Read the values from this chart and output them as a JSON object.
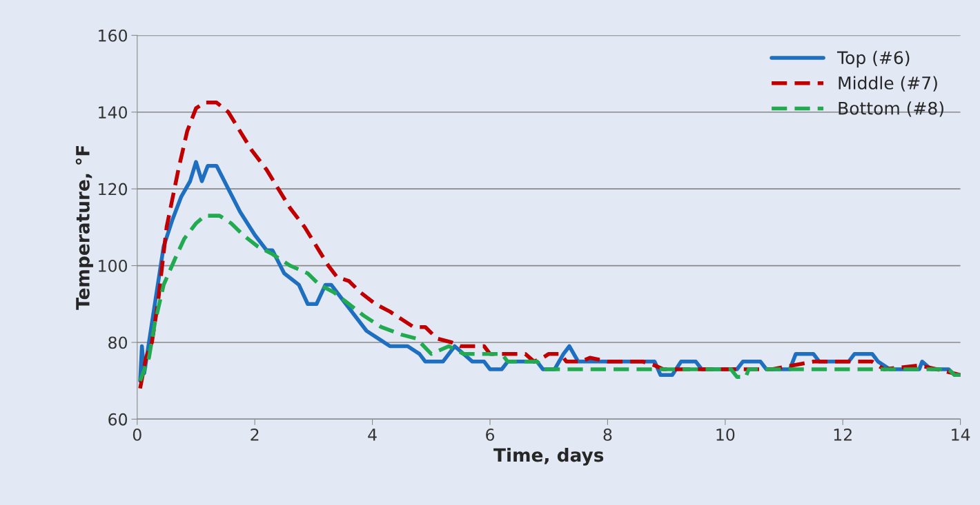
{
  "chart_data": {
    "type": "line",
    "xlabel": "Time, days",
    "ylabel": "Temperature, °F",
    "xlim": [
      0,
      14
    ],
    "xticks": [
      0,
      2,
      4,
      6,
      8,
      10,
      12,
      14
    ],
    "ylim": [
      60,
      160
    ],
    "yticks": [
      60,
      80,
      100,
      120,
      140,
      160
    ],
    "grid": "y",
    "legend": "top right",
    "marker": "none",
    "series": [
      {
        "name": "Top (#6)",
        "color": "#1f6fc0",
        "line_style": "solid",
        "x": [
          0.05,
          0.08,
          0.12,
          0.2,
          0.3,
          0.45,
          0.6,
          0.75,
          0.9,
          1.0,
          1.1,
          1.2,
          1.35,
          1.55,
          1.75,
          2.0,
          2.2,
          2.3,
          2.5,
          2.75,
          2.9,
          3.05,
          3.2,
          3.3,
          3.5,
          3.7,
          3.9,
          4.1,
          4.3,
          4.6,
          4.8,
          4.9,
          5.2,
          5.4,
          5.55,
          5.7,
          5.9,
          6.0,
          6.2,
          6.3,
          6.8,
          6.9,
          7.1,
          7.25,
          7.35,
          7.5,
          8.8,
          8.9,
          9.1,
          9.25,
          9.5,
          9.6,
          10.2,
          10.3,
          10.6,
          10.7,
          11.1,
          11.2,
          11.5,
          11.6,
          12.1,
          12.2,
          12.5,
          12.6,
          12.8,
          13.3,
          13.35,
          13.5,
          13.8,
          13.9,
          14.0
        ],
        "values": [
          70,
          79,
          72,
          80,
          90,
          105,
          112,
          118,
          122,
          127,
          122,
          126,
          126,
          120,
          114,
          108,
          104,
          104,
          98,
          95,
          90,
          90,
          95,
          95,
          91,
          87,
          83,
          81,
          79,
          79,
          77,
          75,
          75,
          79,
          77,
          75,
          75,
          73,
          73,
          75,
          75,
          73,
          73,
          77,
          79,
          75,
          75,
          71.5,
          71.5,
          75,
          75,
          73,
          73,
          75,
          75,
          73,
          73,
          77,
          77,
          75,
          75,
          77,
          77,
          75,
          73,
          73,
          75,
          73,
          73,
          71.5,
          71.5
        ]
      },
      {
        "name": "Middle (#7)",
        "color": "#c00000",
        "line_style": "dashed",
        "x": [
          0.05,
          0.15,
          0.25,
          0.35,
          0.5,
          0.7,
          0.85,
          1.0,
          1.15,
          1.35,
          1.55,
          1.75,
          1.95,
          2.2,
          2.4,
          2.6,
          2.85,
          3.05,
          3.25,
          3.4,
          3.6,
          3.8,
          4.05,
          4.3,
          4.5,
          4.7,
          4.9,
          5.1,
          5.35,
          5.5,
          5.9,
          6.0,
          6.6,
          6.75,
          6.9,
          7.0,
          7.2,
          7.3,
          7.55,
          7.7,
          8.0,
          8.6,
          8.8,
          8.95,
          10.8,
          11.5,
          12.5,
          12.7,
          13.3,
          13.6,
          14.0
        ],
        "values": [
          68,
          76,
          80,
          90,
          110,
          125,
          135,
          141,
          142.5,
          142.5,
          140,
          135,
          130,
          125,
          120,
          115,
          110,
          105,
          100,
          97,
          96,
          93,
          90,
          88,
          86,
          84,
          84,
          81,
          80,
          79,
          79,
          77,
          77,
          75,
          76,
          77,
          77,
          75,
          75,
          76,
          75,
          75,
          74,
          73,
          73,
          75,
          75,
          73,
          74,
          73,
          71.5
        ]
      },
      {
        "name": "Bottom (#8)",
        "color": "#22aa50",
        "line_style": "dashed",
        "x": [
          0.05,
          0.1,
          0.2,
          0.3,
          0.45,
          0.65,
          0.8,
          1.0,
          1.15,
          1.4,
          1.6,
          1.8,
          2.05,
          2.3,
          2.6,
          2.9,
          3.1,
          3.35,
          3.6,
          3.85,
          4.15,
          4.5,
          4.75,
          5.0,
          5.3,
          5.55,
          6.2,
          6.3,
          6.8,
          6.95,
          10.1,
          10.2,
          10.35,
          10.4,
          13.8,
          13.9,
          14.0
        ],
        "values": [
          70,
          72,
          76,
          85,
          95,
          102,
          107,
          111,
          113,
          113,
          111,
          108,
          105,
          103,
          100,
          98,
          95,
          93,
          90,
          87,
          84,
          82,
          81,
          77,
          79,
          77,
          77,
          75,
          75,
          73,
          73,
          71,
          71,
          73,
          73,
          71.5,
          71.5
        ]
      }
    ]
  }
}
